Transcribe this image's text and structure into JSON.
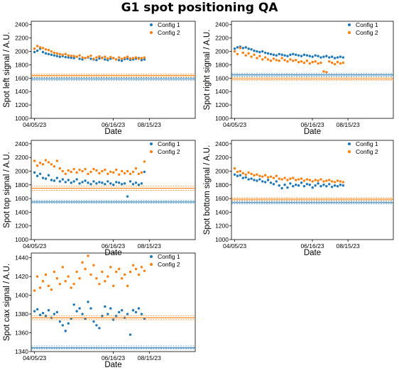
{
  "title": "G1 spot positioning QA",
  "colors": {
    "config1": "#1f77b4",
    "config2": "#ff7f0e"
  },
  "chart_data": [
    {
      "type": "scatter",
      "panel": "left",
      "xlabel": "Date",
      "ylabel": "Spot left signal / A.U.",
      "ylim": [
        1000,
        2450
      ],
      "yticks": [
        1000,
        1200,
        1400,
        1600,
        1800,
        2000,
        2200,
        2400
      ],
      "xticks": [
        "04/05/23",
        "06/16/23",
        "08/15/23"
      ],
      "grid": false,
      "legend": "top-right",
      "series": [
        {
          "name": "Config 1",
          "color": "#1f77b4",
          "y": [
            1990,
            2010,
            2040,
            1990,
            1970,
            1960,
            1950,
            1940,
            1930,
            1920,
            1930,
            1915,
            1910,
            1905,
            1900,
            1920,
            1890,
            1880,
            1900,
            1910,
            1890,
            1880,
            1870,
            1895,
            1905,
            1880,
            1870,
            1890,
            1900,
            1880,
            1870,
            1860,
            1885,
            1890,
            1875,
            1880,
            1890,
            1900,
            1870,
            1880
          ],
          "lines": [
            1570,
            1590,
            1610
          ]
        },
        {
          "name": "Config 2",
          "color": "#ff7f0e",
          "y": [
            2040,
            2080,
            2060,
            2050,
            2030,
            2020,
            2000,
            1980,
            1970,
            1960,
            1950,
            1960,
            1940,
            1935,
            1930,
            1920,
            1940,
            1910,
            1900,
            1920,
            1935,
            1890,
            1910,
            1925,
            1900,
            1920,
            1895,
            1915,
            1900,
            1880,
            1910,
            1890,
            1905,
            1920,
            1895,
            1900,
            1910,
            1890,
            1900,
            1910
          ],
          "lines": [
            1620,
            1640,
            1660
          ]
        }
      ]
    },
    {
      "type": "scatter",
      "panel": "right",
      "xlabel": "Date",
      "ylabel": "Spot right signal / A.U.",
      "ylim": [
        1000,
        2450
      ],
      "yticks": [
        1000,
        1200,
        1400,
        1600,
        1800,
        2000,
        2200,
        2400
      ],
      "xticks": [
        "04/05/23",
        "06/16/23",
        "08/15/23"
      ],
      "grid": false,
      "legend": "top-right",
      "series": [
        {
          "name": "Config 1",
          "color": "#1f77b4",
          "y": [
            2040,
            2060,
            2070,
            2050,
            2060,
            2040,
            2030,
            2010,
            2000,
            1990,
            2000,
            1980,
            1970,
            1960,
            1950,
            1940,
            1960,
            1950,
            1940,
            1930,
            1950,
            1960,
            1950,
            1940,
            1930,
            1950,
            1940,
            1930,
            1920,
            1940,
            1930,
            1910,
            1920,
            1930,
            1910,
            1920,
            1900,
            1910,
            1920,
            1910
          ],
          "lines": [
            1630,
            1650,
            1670
          ]
        },
        {
          "name": "Config 2",
          "color": "#ff7f0e",
          "y": [
            2000,
            1960,
            2050,
            1980,
            1940,
            1970,
            1920,
            1950,
            1900,
            1930,
            1880,
            1910,
            1880,
            1860,
            1890,
            1870,
            1860,
            1900,
            1870,
            1850,
            1880,
            1860,
            1870,
            1840,
            1850,
            1830,
            1860,
            1820,
            1840,
            1850,
            1820,
            1830,
            1700,
            1690,
            1850,
            1830,
            1810,
            1840,
            1820,
            1830
          ],
          "lines": [
            1570,
            1590,
            1610
          ]
        }
      ]
    },
    {
      "type": "scatter",
      "panel": "top",
      "xlabel": "Date",
      "ylabel": "Spot top signal / A.U.",
      "ylim": [
        1000,
        2450
      ],
      "yticks": [
        1000,
        1200,
        1400,
        1600,
        1800,
        2000,
        2200,
        2400
      ],
      "xticks": [
        "04/05/23",
        "06/16/23",
        "08/15/23"
      ],
      "grid": false,
      "legend": "top-right",
      "series": [
        {
          "name": "Config 1",
          "color": "#1f77b4",
          "y": [
            1980,
            1930,
            1960,
            1900,
            1890,
            1940,
            1870,
            1860,
            1900,
            1850,
            1880,
            1840,
            1870,
            1830,
            1850,
            1880,
            1820,
            1840,
            1860,
            1830,
            1810,
            1850,
            1820,
            1840,
            1830,
            1810,
            1850,
            1820,
            1800,
            1840,
            1830,
            1810,
            1820,
            1630,
            1850,
            1810,
            1830,
            1800,
            1820,
            1990
          ],
          "lines": [
            1530,
            1550,
            1570
          ]
        },
        {
          "name": "Config 2",
          "color": "#ff7f0e",
          "y": [
            2150,
            2080,
            2120,
            2100,
            2160,
            2130,
            2100,
            2070,
            2150,
            2040,
            2000,
            1960,
            2010,
            1990,
            2030,
            1980,
            2020,
            2000,
            2030,
            1960,
            1990,
            2030,
            2010,
            1970,
            2000,
            2020,
            1960,
            1990,
            1980,
            2020,
            1950,
            2000,
            1970,
            2000,
            1960,
            1990,
            2040,
            1960,
            1980,
            2140
          ],
          "lines": [
            1720,
            1750,
            1780
          ]
        }
      ]
    },
    {
      "type": "scatter",
      "panel": "bottom",
      "xlabel": "Date",
      "ylabel": "Spot bottom signal / A.U.",
      "ylim": [
        1000,
        2450
      ],
      "yticks": [
        1000,
        1200,
        1400,
        1600,
        1800,
        2000,
        2200,
        2400
      ],
      "xticks": [
        "04/05/23",
        "06/16/23",
        "08/15/23"
      ],
      "grid": false,
      "legend": "top-right",
      "series": [
        {
          "name": "Config 1",
          "color": "#1f77b4",
          "y": [
            1950,
            1930,
            1940,
            1900,
            1910,
            1880,
            1890,
            1870,
            1860,
            1880,
            1850,
            1840,
            1870,
            1830,
            1810,
            1850,
            1790,
            1750,
            1800,
            1760,
            1820,
            1780,
            1800,
            1790,
            1830,
            1780,
            1810,
            1800,
            1760,
            1790,
            1820,
            1780,
            1800,
            1780,
            1810,
            1770,
            1790,
            1780,
            1800,
            1790
          ],
          "lines": [
            1520,
            1540,
            1560
          ]
        },
        {
          "name": "Config 2",
          "color": "#ff7f0e",
          "y": [
            2040,
            1990,
            2000,
            1970,
            1950,
            1980,
            1960,
            1940,
            1950,
            1930,
            1920,
            1940,
            1910,
            1920,
            1900,
            1930,
            1890,
            1880,
            1900,
            1870,
            1890,
            1900,
            1870,
            1880,
            1890,
            1860,
            1880,
            1870,
            1850,
            1870,
            1860,
            1880,
            1850,
            1860,
            1870,
            1850,
            1840,
            1860,
            1850,
            1840
          ],
          "lines": [
            1570,
            1590,
            1610
          ]
        }
      ]
    },
    {
      "type": "scatter",
      "panel": "cax",
      "xlabel": "Date",
      "ylabel": "Spot cax signal / A.U.",
      "ylim": [
        1340,
        1445
      ],
      "yticks": [
        1340,
        1360,
        1380,
        1400,
        1420,
        1440
      ],
      "xticks": [
        "04/05/23",
        "06/16/23",
        "08/15/23"
      ],
      "grid": false,
      "legend": "top-right",
      "series": [
        {
          "name": "Config 1",
          "color": "#1f77b4",
          "y": [
            1383,
            1385,
            1379,
            1381,
            1378,
            1384,
            1376,
            1380,
            1382,
            1372,
            1368,
            1362,
            1370,
            1375,
            1390,
            1383,
            1386,
            1380,
            1375,
            1393,
            1386,
            1372,
            1368,
            1365,
            1378,
            1388,
            1380,
            1386,
            1374,
            1378,
            1382,
            1384,
            1376,
            1380,
            1358,
            1384,
            1382,
            1386,
            1380,
            1375
          ],
          "lines": [
            1343,
            1344,
            1346
          ]
        },
        {
          "name": "Config 2",
          "color": "#ff7f0e",
          "y": [
            1405,
            1420,
            1408,
            1415,
            1422,
            1410,
            1406,
            1425,
            1418,
            1412,
            1430,
            1415,
            1420,
            1408,
            1412,
            1425,
            1418,
            1435,
            1428,
            1442,
            1422,
            1432,
            1418,
            1412,
            1425,
            1415,
            1420,
            1430,
            1410,
            1425,
            1428,
            1418,
            1422,
            1410,
            1425,
            1432,
            1428,
            1422,
            1430,
            1426
          ],
          "lines": [
            1374,
            1376,
            1378
          ]
        }
      ]
    }
  ]
}
